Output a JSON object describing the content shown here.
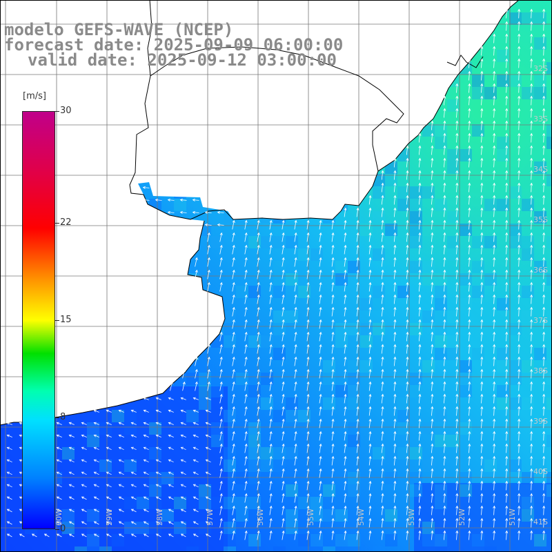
{
  "title": {
    "line1": "modelo GEFS-WAVE (NCEP)",
    "line2": "forecast date: 2025-09-09 06:00:00",
    "line3": "valid date: 2025-09-12 03:00:00"
  },
  "colorbar": {
    "units": "[m/s]",
    "ticks": [
      {
        "label": "30",
        "value": 30
      },
      {
        "label": "22",
        "value": 22
      },
      {
        "label": "15",
        "value": 15
      },
      {
        "label": "8",
        "value": 8
      },
      {
        "label": "0",
        "value": 0
      }
    ]
  },
  "grid": {
    "lat_labels": [
      "32S",
      "33S",
      "34S",
      "35S",
      "36S",
      "37S",
      "38S",
      "39S",
      "40S",
      "41S"
    ],
    "lon_labels": [
      "60W",
      "59W",
      "58W",
      "57W",
      "56W",
      "55W",
      "54W",
      "53W",
      "52W",
      "51W"
    ]
  },
  "colors": {
    "land": "#ffffff",
    "coast": "#000000",
    "grid": "#777777",
    "arrows": "#ffffff",
    "text": "#8a8a8a"
  }
}
